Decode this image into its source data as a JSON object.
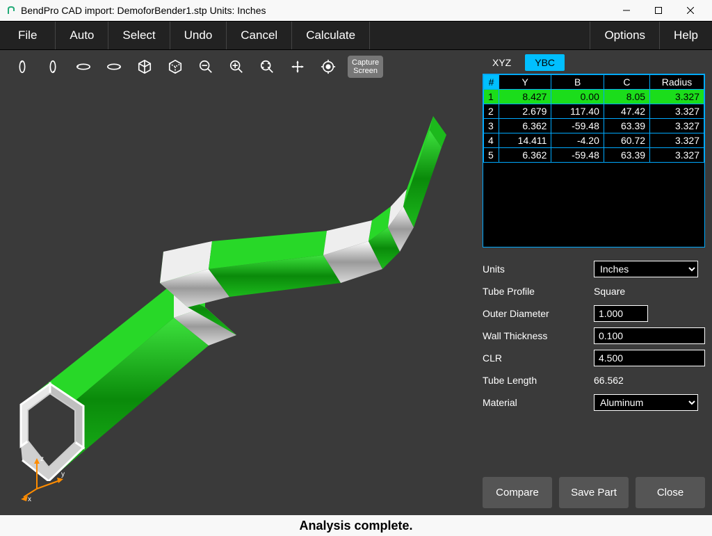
{
  "window": {
    "title": "BendPro CAD import: DemoforBender1.stp  Units: Inches"
  },
  "menu": {
    "file": "File",
    "auto": "Auto",
    "select": "Select",
    "undo": "Undo",
    "cancel": "Cancel",
    "calculate": "Calculate",
    "options": "Options",
    "help": "Help"
  },
  "toolbar": {
    "capture_line1": "Capture",
    "capture_line2": "Screen"
  },
  "tabs": {
    "xyz": "XYZ",
    "ybc": "YBC"
  },
  "table": {
    "headers": {
      "num": "#",
      "y": "Y",
      "b": "B",
      "c": "C",
      "radius": "Radius"
    },
    "rows": [
      {
        "n": "1",
        "y": "8.427",
        "b": "0.00",
        "c": "8.05",
        "r": "3.327",
        "highlight": true
      },
      {
        "n": "2",
        "y": "2.679",
        "b": "117.40",
        "c": "47.42",
        "r": "3.327",
        "highlight": false
      },
      {
        "n": "3",
        "y": "6.362",
        "b": "-59.48",
        "c": "63.39",
        "r": "3.327",
        "highlight": false
      },
      {
        "n": "4",
        "y": "14.411",
        "b": "-4.20",
        "c": "60.72",
        "r": "3.327",
        "highlight": false
      },
      {
        "n": "5",
        "y": "6.362",
        "b": "-59.48",
        "c": "63.39",
        "r": "3.327",
        "highlight": false
      }
    ]
  },
  "props": {
    "units_label": "Units",
    "units_value": "Inches",
    "profile_label": "Tube Profile",
    "profile_value": "Square",
    "od_label": "Outer Diameter",
    "od_value": "1.000",
    "wt_label": "Wall Thickness",
    "wt_value": "0.100",
    "clr_label": "CLR",
    "clr_value": "4.500",
    "len_label": "Tube Length",
    "len_value": "66.562",
    "mat_label": "Material",
    "mat_value": "Aluminum"
  },
  "buttons": {
    "compare": "Compare",
    "save": "Save Part",
    "close": "Close"
  },
  "status": "Analysis complete.",
  "axis": {
    "x": "x",
    "y": "y",
    "z": "z"
  },
  "colors": {
    "tube_green": "#1cb91c",
    "tube_silver": "#cfcfcf",
    "highlight_row": "#1bdd1b",
    "active_tab": "#00bfff",
    "table_border": "#00aaff",
    "panel_bg": "#3a3a3a"
  }
}
